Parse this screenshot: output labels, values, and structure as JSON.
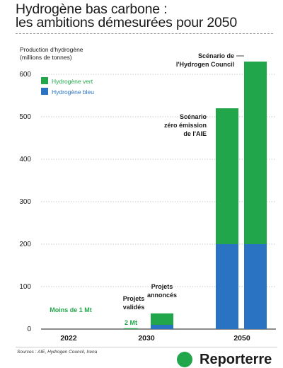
{
  "chart_data": {
    "type": "bar",
    "title": "Hydrogène bas carbone :",
    "subtitle": "les ambitions démesurées pour 2050",
    "ylabel": "Production d'hydrogène",
    "ylabel_unit": "(millions de tonnes)",
    "ylim": [
      0,
      650
    ],
    "yticks": [
      0,
      100,
      200,
      300,
      400,
      500,
      600
    ],
    "grid": true,
    "legend_position": "top-left",
    "colors": {
      "green": "#22a64b",
      "blue": "#2a72c2"
    },
    "series": [
      {
        "name": "Hydrogène vert",
        "color": "#22a64b"
      },
      {
        "name": "Hydrogène bleu",
        "color": "#2a72c2"
      }
    ],
    "categories": [
      "2022",
      "2030",
      "2050"
    ],
    "bars": [
      {
        "category": "2022",
        "green": 0.5,
        "blue": 0,
        "labels": [
          "Moins de 1 Mt"
        ]
      },
      {
        "category": "2030",
        "green": 2,
        "blue": 0,
        "labels": [
          "Projets",
          "validés"
        ],
        "value_label": "2 Mt"
      },
      {
        "category": "2030",
        "green": 27,
        "blue": 10,
        "labels": [
          "Projets",
          "annoncés"
        ]
      },
      {
        "category": "2050",
        "green": 320,
        "blue": 200,
        "labels": [
          "Scénario",
          "zéro émission",
          "de l'AIE"
        ]
      },
      {
        "category": "2050",
        "green": 430,
        "blue": 200,
        "labels": [
          "Scénario de",
          "l'Hydrogen Council"
        ]
      }
    ]
  },
  "footer": {
    "sources": "Sources : AIE, Hydrogen Council, Irena",
    "logo_text": "Reporterre",
    "logo_icon": "reporterre-logo-icon"
  }
}
